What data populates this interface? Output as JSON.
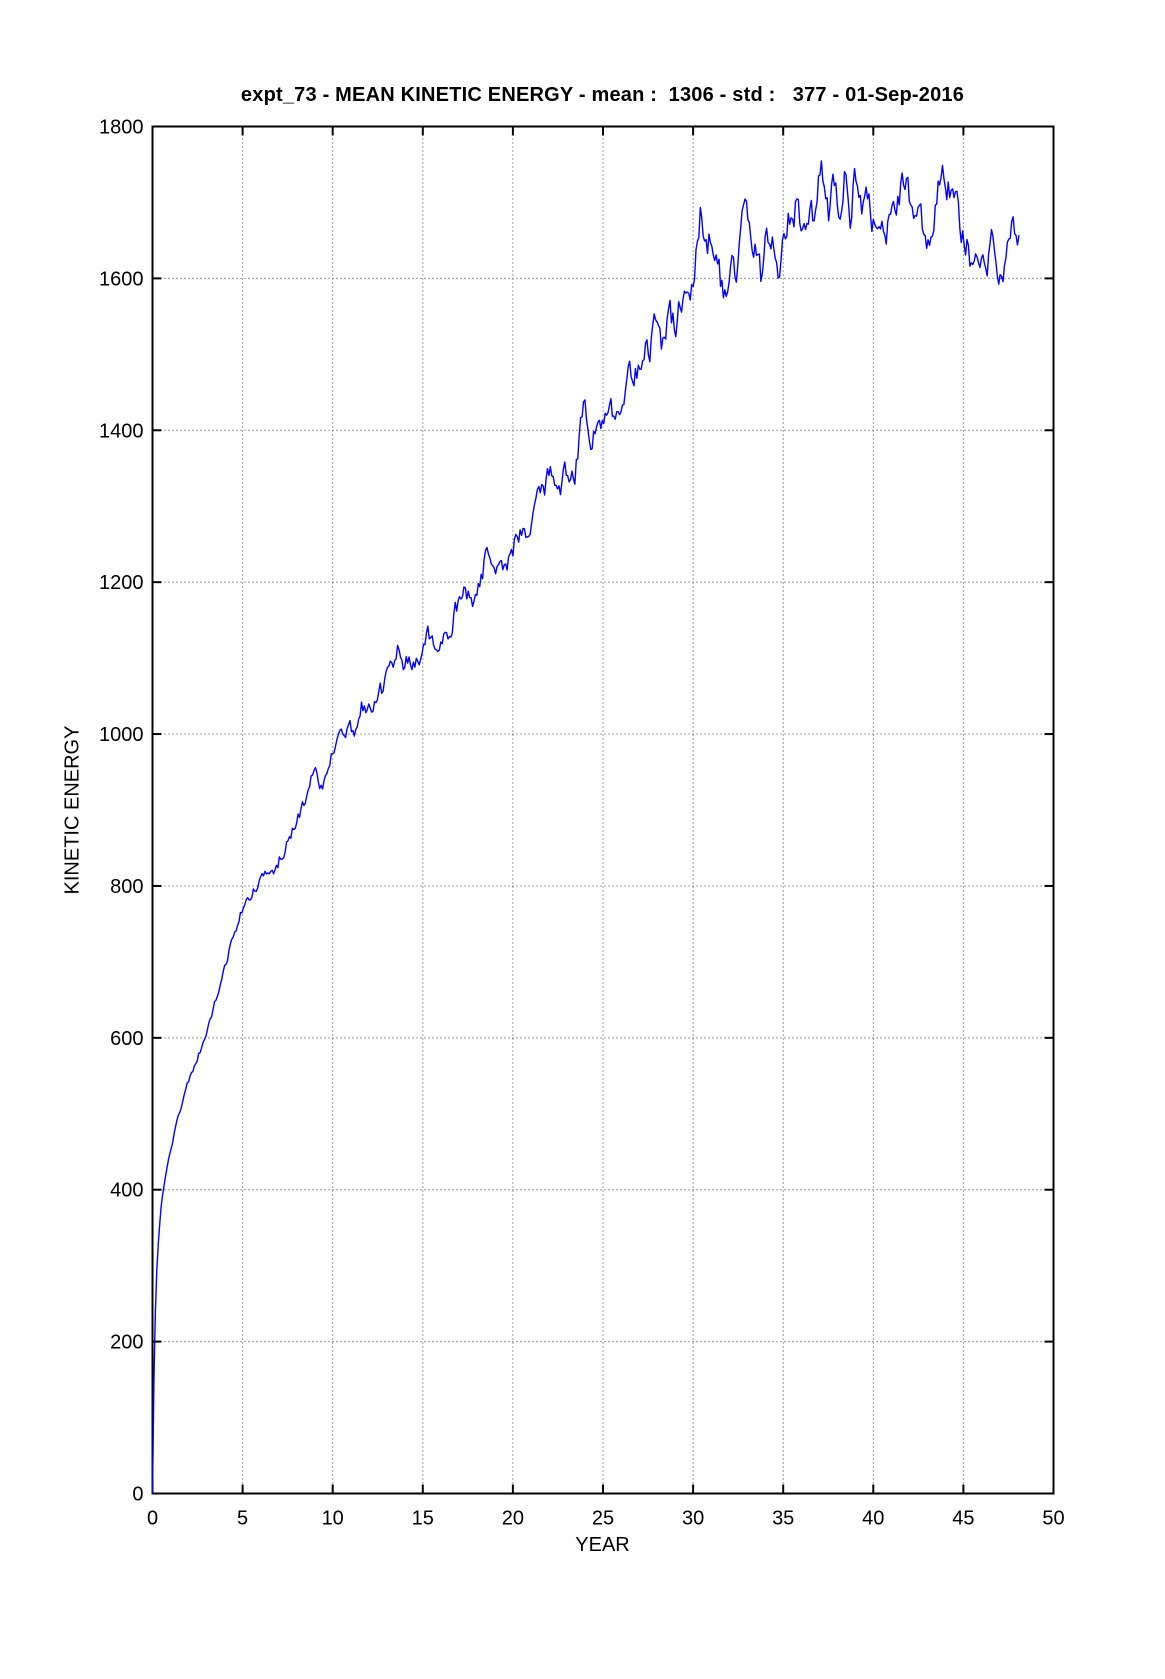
{
  "chart_data": {
    "type": "line",
    "title": "expt_73 - MEAN KINETIC ENERGY - mean :  1306 - std :   377 - 01-Sep-2016",
    "xlabel": "YEAR",
    "ylabel": "KINETIC ENERGY",
    "mean": 1306,
    "std": 377,
    "date_label": "01-Sep-2016",
    "experiment": "expt_73",
    "xlim": [
      0,
      50
    ],
    "ylim": [
      0,
      1800
    ],
    "xticks": [
      0,
      5,
      10,
      15,
      20,
      25,
      30,
      35,
      40,
      45,
      50
    ],
    "yticks": [
      0,
      200,
      400,
      600,
      800,
      1000,
      1200,
      1400,
      1600,
      1800
    ],
    "grid": true,
    "legend": "none",
    "line_color": "#0000ff",
    "series": [
      {
        "name": "mean kinetic energy",
        "step": 0.08,
        "seed": 20160901,
        "anchors": [
          [
            0,
            0
          ],
          [
            0.04,
            80
          ],
          [
            0.08,
            150
          ],
          [
            0.12,
            205
          ],
          [
            0.18,
            255
          ],
          [
            0.25,
            300
          ],
          [
            0.35,
            340
          ],
          [
            0.5,
            382
          ],
          [
            0.65,
            408
          ],
          [
            0.8,
            428
          ],
          [
            1,
            452
          ],
          [
            1.25,
            478
          ],
          [
            1.5,
            502
          ],
          [
            1.75,
            522
          ],
          [
            2,
            543
          ],
          [
            2.3,
            562
          ],
          [
            2.6,
            580
          ],
          [
            3,
            608
          ],
          [
            3.5,
            648
          ],
          [
            4,
            690
          ],
          [
            4.3,
            718
          ],
          [
            4.6,
            742
          ],
          [
            5,
            770
          ],
          [
            5.3,
            780
          ],
          [
            5.6,
            792
          ],
          [
            6,
            806
          ],
          [
            6.3,
            818
          ],
          [
            6.6,
            812
          ],
          [
            7,
            833
          ],
          [
            7.5,
            856
          ],
          [
            8,
            882
          ],
          [
            8.5,
            912
          ],
          [
            8.8,
            936
          ],
          [
            9,
            948
          ],
          [
            9.2,
            930
          ],
          [
            9.5,
            938
          ],
          [
            9.8,
            958
          ],
          [
            10,
            972
          ],
          [
            10.3,
            988
          ],
          [
            10.6,
            1000
          ],
          [
            11,
            1005
          ],
          [
            11.35,
            1000
          ],
          [
            11.6,
            1035
          ],
          [
            12,
            1030
          ],
          [
            12.3,
            1045
          ],
          [
            12.6,
            1055
          ],
          [
            13,
            1070
          ],
          [
            13.4,
            1095
          ],
          [
            13.6,
            1108
          ],
          [
            13.9,
            1085
          ],
          [
            14.2,
            1100
          ],
          [
            14.5,
            1090
          ],
          [
            14.8,
            1100
          ],
          [
            15,
            1112
          ],
          [
            15.3,
            1127
          ],
          [
            15.6,
            1120
          ],
          [
            16,
            1130
          ],
          [
            16.35,
            1118
          ],
          [
            16.7,
            1152
          ],
          [
            17,
            1178
          ],
          [
            17.3,
            1186
          ],
          [
            17.6,
            1176
          ],
          [
            18,
            1169
          ],
          [
            18.3,
            1212
          ],
          [
            18.6,
            1243
          ],
          [
            19,
            1218
          ],
          [
            19.3,
            1228
          ],
          [
            19.6,
            1214
          ],
          [
            20,
            1246
          ],
          [
            20.4,
            1270
          ],
          [
            20.8,
            1266
          ],
          [
            21.2,
            1305
          ],
          [
            21.7,
            1322
          ],
          [
            22.1,
            1351
          ],
          [
            22.5,
            1318
          ],
          [
            22.8,
            1336
          ],
          [
            23.1,
            1347
          ],
          [
            23.4,
            1328
          ],
          [
            23.7,
            1392
          ],
          [
            23.95,
            1434
          ],
          [
            24.3,
            1356
          ],
          [
            24.6,
            1402
          ],
          [
            25,
            1415
          ],
          [
            25.4,
            1428
          ],
          [
            25.7,
            1414
          ],
          [
            26.2,
            1450
          ],
          [
            26.45,
            1474
          ],
          [
            26.7,
            1465
          ],
          [
            27.1,
            1500
          ],
          [
            27.3,
            1510
          ],
          [
            27.55,
            1494
          ],
          [
            27.9,
            1538
          ],
          [
            28.3,
            1514
          ],
          [
            28.7,
            1553
          ],
          [
            29,
            1540
          ],
          [
            29.3,
            1573
          ],
          [
            29.7,
            1586
          ],
          [
            29.9,
            1578
          ],
          [
            30.1,
            1612
          ],
          [
            30.4,
            1683
          ],
          [
            30.7,
            1633
          ],
          [
            31,
            1662
          ],
          [
            31.4,
            1612
          ],
          [
            31.7,
            1576
          ],
          [
            32.1,
            1620
          ],
          [
            32.4,
            1597
          ],
          [
            32.9,
            1706
          ],
          [
            33.2,
            1640
          ],
          [
            33.5,
            1652
          ],
          [
            33.75,
            1604
          ],
          [
            33.95,
            1646
          ],
          [
            34.1,
            1668
          ],
          [
            34.2,
            1640
          ],
          [
            34.45,
            1662
          ],
          [
            34.7,
            1620
          ],
          [
            35,
            1650
          ],
          [
            35.3,
            1685
          ],
          [
            35.55,
            1663
          ],
          [
            35.8,
            1716
          ],
          [
            36,
            1676
          ],
          [
            36.15,
            1660
          ],
          [
            36.45,
            1702
          ],
          [
            36.7,
            1672
          ],
          [
            37.1,
            1754
          ],
          [
            37.35,
            1700
          ],
          [
            37.55,
            1678
          ],
          [
            37.8,
            1730
          ],
          [
            38.1,
            1680
          ],
          [
            38.4,
            1732
          ],
          [
            38.7,
            1670
          ],
          [
            39,
            1748
          ],
          [
            39.35,
            1693
          ],
          [
            39.6,
            1706
          ],
          [
            39.9,
            1677
          ],
          [
            40.1,
            1694
          ],
          [
            40.4,
            1672
          ],
          [
            40.7,
            1655
          ],
          [
            41.1,
            1694
          ],
          [
            41.7,
            1719
          ],
          [
            42.2,
            1699
          ],
          [
            42.7,
            1672
          ],
          [
            43.1,
            1655
          ],
          [
            43.5,
            1700
          ],
          [
            43.85,
            1746
          ],
          [
            44.3,
            1707
          ],
          [
            44.6,
            1694
          ],
          [
            45,
            1660
          ],
          [
            45.4,
            1624
          ],
          [
            45.7,
            1648
          ],
          [
            46,
            1637
          ],
          [
            46.3,
            1601
          ],
          [
            46.6,
            1642
          ],
          [
            46.8,
            1623
          ],
          [
            47,
            1609
          ],
          [
            47.2,
            1617
          ],
          [
            47.45,
            1666
          ],
          [
            47.65,
            1682
          ],
          [
            47.9,
            1650
          ],
          [
            48,
            1622
          ],
          [
            48.1,
            1638
          ]
        ],
        "noise_amplitude": [
          [
            0,
            1
          ],
          [
            1,
            3
          ],
          [
            2,
            4
          ],
          [
            5,
            7
          ],
          [
            8,
            10
          ],
          [
            12,
            13
          ],
          [
            16,
            15
          ],
          [
            20,
            17
          ],
          [
            26,
            19
          ],
          [
            30,
            22
          ],
          [
            34,
            23
          ],
          [
            48,
            23
          ]
        ]
      }
    ]
  }
}
